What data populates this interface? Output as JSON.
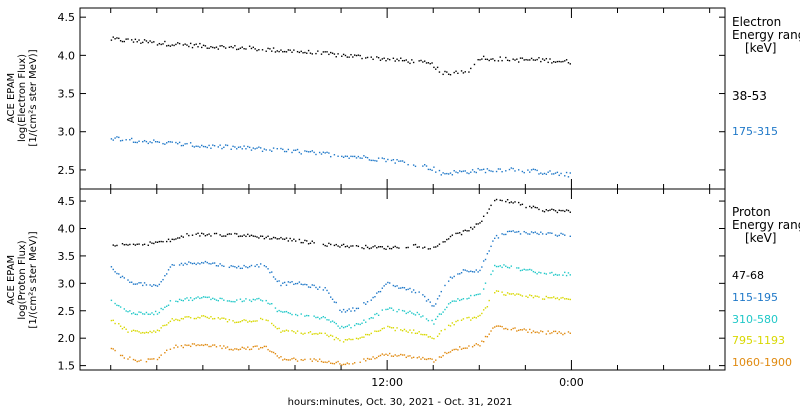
{
  "chart_data": [
    {
      "type": "scatter",
      "ylabel_lines": [
        "ACE EPAM",
        "log(Electron Flux)",
        "[1/(cm²s ster MeV)]"
      ],
      "legend_title": [
        "Electron",
        "Energy range",
        "[keV]"
      ],
      "ylim": [
        2.25,
        4.62
      ],
      "yticks": [
        2.5,
        3.0,
        3.5,
        4.0,
        4.5
      ],
      "ytick_labels": [
        "2.5",
        "3.0",
        "3.5",
        "4.0",
        "4.5"
      ],
      "grid": false,
      "series": [
        {
          "name": "38-53",
          "color": "#000000",
          "x": [
            -6,
            -3,
            0,
            3,
            6,
            9,
            12,
            14,
            15,
            15.5,
            16,
            17.5,
            18,
            20,
            22,
            24
          ],
          "y": [
            4.22,
            4.17,
            4.13,
            4.1,
            4.06,
            4.01,
            3.96,
            3.92,
            3.88,
            3.76,
            3.78,
            3.82,
            3.98,
            3.95,
            3.95,
            3.92
          ]
        },
        {
          "name": "175-315",
          "color": "#1f78c8",
          "x": [
            -6,
            -3,
            0,
            3,
            6,
            9,
            12,
            14,
            15,
            15.5,
            16,
            18,
            20,
            22,
            24
          ],
          "y": [
            2.93,
            2.87,
            2.82,
            2.79,
            2.75,
            2.7,
            2.64,
            2.58,
            2.52,
            2.46,
            2.47,
            2.5,
            2.52,
            2.48,
            2.44
          ]
        }
      ]
    },
    {
      "type": "scatter",
      "ylabel_lines": [
        "ACE EPAM",
        "log(Proton Flux)",
        "[1/(cm²s ster MeV)]"
      ],
      "legend_title": [
        "Proton",
        "Energy range",
        "[keV]"
      ],
      "ylim": [
        1.42,
        4.72
      ],
      "yticks": [
        1.5,
        2.0,
        2.5,
        3.0,
        3.5,
        4.0,
        4.5
      ],
      "ytick_labels": [
        "1.5",
        "2.0",
        "2.5",
        "3.0",
        "3.5",
        "4.0",
        "4.5"
      ],
      "grid": false,
      "series": [
        {
          "name": "47-68",
          "color": "#000000",
          "x": [
            -6,
            -4,
            -2,
            -1,
            2,
            5,
            8,
            10,
            12,
            14,
            15,
            16,
            17,
            18,
            19,
            20,
            21,
            22,
            24
          ],
          "y": [
            3.7,
            3.72,
            3.8,
            3.9,
            3.9,
            3.83,
            3.72,
            3.68,
            3.66,
            3.7,
            3.65,
            3.85,
            3.95,
            4.1,
            4.55,
            4.5,
            4.42,
            4.35,
            4.32
          ]
        },
        {
          "name": "115-195",
          "color": "#1f78c8",
          "x": [
            -6,
            -5,
            -4,
            -3,
            -2,
            0,
            2,
            4,
            5,
            6,
            8,
            9,
            10,
            11,
            12,
            14,
            15,
            16,
            17,
            18,
            19,
            20,
            22,
            24
          ],
          "y": [
            3.3,
            3.05,
            3.0,
            2.95,
            3.35,
            3.4,
            3.3,
            3.35,
            3.0,
            3.02,
            2.9,
            2.5,
            2.55,
            2.75,
            3.0,
            2.85,
            2.6,
            3.1,
            3.25,
            3.25,
            3.85,
            3.95,
            3.92,
            3.88
          ]
        },
        {
          "name": "310-580",
          "color": "#20c8c8",
          "x": [
            -6,
            -5,
            -4,
            -3,
            -2,
            0,
            2,
            4,
            5,
            6,
            8,
            9,
            10,
            11,
            12,
            14,
            15,
            16,
            17,
            18,
            19,
            20,
            22,
            24
          ],
          "y": [
            2.7,
            2.5,
            2.45,
            2.48,
            2.7,
            2.75,
            2.7,
            2.72,
            2.48,
            2.45,
            2.38,
            2.2,
            2.25,
            2.4,
            2.55,
            2.45,
            2.3,
            2.65,
            2.75,
            2.8,
            3.35,
            3.3,
            3.2,
            3.18
          ]
        },
        {
          "name": "795-1193",
          "color": "#d8d800",
          "x": [
            -6,
            -5,
            -4,
            -3,
            -2,
            0,
            2,
            4,
            5,
            6,
            8,
            9,
            10,
            11,
            12,
            14,
            15,
            16,
            17,
            18,
            19,
            20,
            22,
            24
          ],
          "y": [
            2.35,
            2.15,
            2.12,
            2.15,
            2.35,
            2.4,
            2.32,
            2.35,
            2.15,
            2.12,
            2.08,
            1.95,
            2.0,
            2.1,
            2.2,
            2.12,
            2.0,
            2.25,
            2.35,
            2.4,
            2.85,
            2.8,
            2.75,
            2.72
          ]
        },
        {
          "name": "1060-1900",
          "color": "#e08a10",
          "x": [
            -6,
            -5,
            -4,
            -3,
            -2,
            0,
            2,
            4,
            5,
            6,
            8,
            9,
            10,
            11,
            12,
            14,
            15,
            16,
            17,
            18,
            19,
            20,
            22,
            24
          ],
          "y": [
            1.82,
            1.65,
            1.6,
            1.65,
            1.85,
            1.9,
            1.82,
            1.85,
            1.65,
            1.62,
            1.6,
            1.55,
            1.58,
            1.65,
            1.72,
            1.65,
            1.6,
            1.78,
            1.85,
            1.9,
            2.22,
            2.18,
            2.12,
            2.1
          ]
        }
      ]
    }
  ],
  "x_axis": {
    "xlim": [
      -8,
      34
    ],
    "ticks": [
      12,
      24
    ],
    "tick_labels": [
      "12:00",
      "0:00"
    ],
    "minor_step": 3,
    "xlabel": "hours:minutes, Oct. 30, 2021 - Oct. 31, 2021"
  }
}
